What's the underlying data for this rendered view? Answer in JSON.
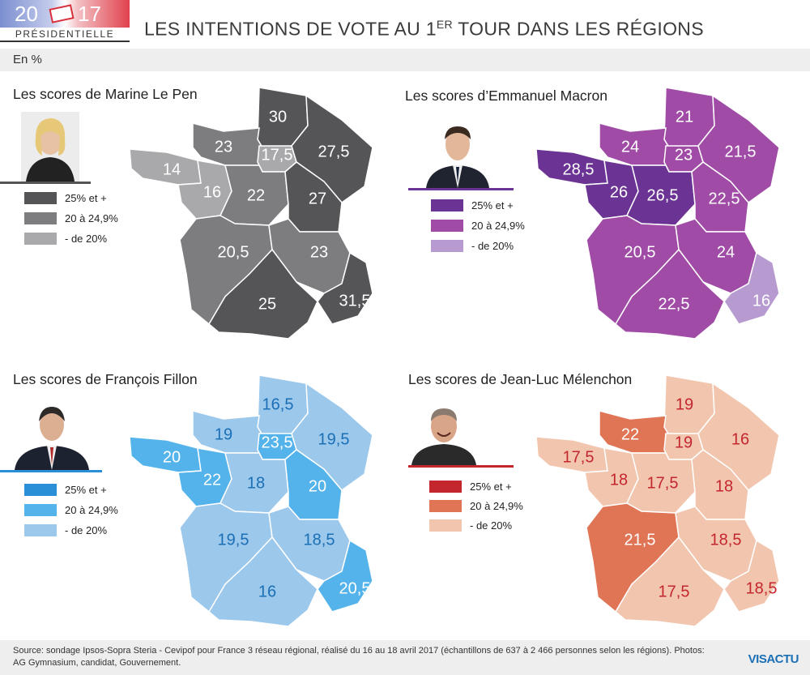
{
  "header": {
    "logo_year_left": "20",
    "logo_year_right": "17",
    "logo_subtitle": "PRÉSIDENTIELLE",
    "title_before": "LES INTENTIONS DE VOTE AU 1",
    "title_sup": "ER",
    "title_after": " TOUR DANS LES RÉGIONS",
    "unit": "En %"
  },
  "panels": [
    {
      "title": "Les scores de Marine Le Pen",
      "accent": "#555558",
      "legend": [
        {
          "label": "25% et +",
          "color": "#555558"
        },
        {
          "label": "20 à 24,9%",
          "color": "#7d7d80"
        },
        {
          "label": "- de 20%",
          "color": "#a9a9ab"
        }
      ],
      "regions": [
        {
          "name": "Hauts-de-France",
          "value": "30",
          "color": "#555558"
        },
        {
          "name": "Normandie",
          "value": "23",
          "color": "#7d7d80"
        },
        {
          "name": "Île-de-France",
          "value": "17,5",
          "color": "#a9a9ab"
        },
        {
          "name": "Grand Est",
          "value": "27,5",
          "color": "#555558"
        },
        {
          "name": "Bretagne",
          "value": "14",
          "color": "#a9a9ab"
        },
        {
          "name": "Pays de la Loire",
          "value": "16",
          "color": "#a9a9ab"
        },
        {
          "name": "Centre-Val de Loire",
          "value": "22",
          "color": "#7d7d80"
        },
        {
          "name": "Bourgogne-Franche-Comté",
          "value": "27",
          "color": "#555558"
        },
        {
          "name": "Nouvelle-Aquitaine",
          "value": "20,5",
          "color": "#7d7d80"
        },
        {
          "name": "Auvergne-Rhône-Alpes",
          "value": "23",
          "color": "#7d7d80"
        },
        {
          "name": "Occitanie",
          "value": "25",
          "color": "#555558"
        },
        {
          "name": "Provence-Alpes-Côte d'Azur",
          "value": "31,5",
          "color": "#555558"
        }
      ]
    },
    {
      "title": "Les scores d’Emmanuel Macron",
      "accent": "#6b3394",
      "legend": [
        {
          "label": "25% et +",
          "color": "#6b3394"
        },
        {
          "label": "20 à 24,9%",
          "color": "#a04ca6"
        },
        {
          "label": "- de 20%",
          "color": "#b79bd0"
        }
      ],
      "regions": [
        {
          "name": "Hauts-de-France",
          "value": "21",
          "color": "#a04ca6"
        },
        {
          "name": "Normandie",
          "value": "24",
          "color": "#a04ca6"
        },
        {
          "name": "Île-de-France",
          "value": "23",
          "color": "#a04ca6"
        },
        {
          "name": "Grand Est",
          "value": "21,5",
          "color": "#a04ca6"
        },
        {
          "name": "Bretagne",
          "value": "28,5",
          "color": "#6b3394"
        },
        {
          "name": "Pays de la Loire",
          "value": "26",
          "color": "#6b3394"
        },
        {
          "name": "Centre-Val de Loire",
          "value": "26,5",
          "color": "#6b3394"
        },
        {
          "name": "Bourgogne-Franche-Comté",
          "value": "22,5",
          "color": "#a04ca6"
        },
        {
          "name": "Nouvelle-Aquitaine",
          "value": "20,5",
          "color": "#a04ca6"
        },
        {
          "name": "Auvergne-Rhône-Alpes",
          "value": "24",
          "color": "#a04ca6"
        },
        {
          "name": "Occitanie",
          "value": "22,5",
          "color": "#a04ca6"
        },
        {
          "name": "Provence-Alpes-Côte d'Azur",
          "value": "16",
          "color": "#b79bd0"
        }
      ]
    },
    {
      "title": "Les scores de François Fillon",
      "accent": "#2a8fd6",
      "legend": [
        {
          "label": "25% et +",
          "color": "#2a8fd6"
        },
        {
          "label": "20 à 24,9%",
          "color": "#53b3ea"
        },
        {
          "label": "- de 20%",
          "color": "#9cc8ec"
        }
      ],
      "regions": [
        {
          "name": "Hauts-de-France",
          "value": "16,5",
          "color": "#9cc8ec"
        },
        {
          "name": "Normandie",
          "value": "19",
          "color": "#9cc8ec"
        },
        {
          "name": "Île-de-France",
          "value": "23,5",
          "color": "#53b3ea"
        },
        {
          "name": "Grand Est",
          "value": "19,5",
          "color": "#9cc8ec"
        },
        {
          "name": "Bretagne",
          "value": "20",
          "color": "#53b3ea"
        },
        {
          "name": "Pays de la Loire",
          "value": "22",
          "color": "#53b3ea"
        },
        {
          "name": "Centre-Val de Loire",
          "value": "18",
          "color": "#9cc8ec"
        },
        {
          "name": "Bourgogne-Franche-Comté",
          "value": "20",
          "color": "#53b3ea"
        },
        {
          "name": "Nouvelle-Aquitaine",
          "value": "19,5",
          "color": "#9cc8ec"
        },
        {
          "name": "Auvergne-Rhône-Alpes",
          "value": "18,5",
          "color": "#9cc8ec"
        },
        {
          "name": "Occitanie",
          "value": "16",
          "color": "#9cc8ec"
        },
        {
          "name": "Provence-Alpes-Côte d'Azur",
          "value": "20,5",
          "color": "#53b3ea"
        }
      ]
    },
    {
      "title": "Les scores de Jean-Luc Mélenchon",
      "accent": "#c4262e",
      "legend": [
        {
          "label": "25% et +",
          "color": "#c4262e"
        },
        {
          "label": "20 à 24,9%",
          "color": "#e07556"
        },
        {
          "label": "- de 20%",
          "color": "#f2c6ae"
        }
      ],
      "regions": [
        {
          "name": "Hauts-de-France",
          "value": "19",
          "color": "#f2c6ae"
        },
        {
          "name": "Normandie",
          "value": "22",
          "color": "#e07556"
        },
        {
          "name": "Île-de-France",
          "value": "19",
          "color": "#f2c6ae"
        },
        {
          "name": "Grand Est",
          "value": "16",
          "color": "#f2c6ae"
        },
        {
          "name": "Bretagne",
          "value": "17,5",
          "color": "#f2c6ae"
        },
        {
          "name": "Pays de la Loire",
          "value": "18",
          "color": "#f2c6ae"
        },
        {
          "name": "Centre-Val de Loire",
          "value": "17,5",
          "color": "#f2c6ae"
        },
        {
          "name": "Bourgogne-Franche-Comté",
          "value": "18",
          "color": "#f2c6ae"
        },
        {
          "name": "Nouvelle-Aquitaine",
          "value": "21,5",
          "color": "#e07556"
        },
        {
          "name": "Auvergne-Rhône-Alpes",
          "value": "18,5",
          "color": "#f2c6ae"
        },
        {
          "name": "Occitanie",
          "value": "17,5",
          "color": "#f2c6ae"
        },
        {
          "name": "Provence-Alpes-Côte d'Azur",
          "value": "18,5",
          "color": "#f2c6ae"
        }
      ]
    }
  ],
  "footer": {
    "source": "Source: sondage Ipsos-Sopra Steria - Cevipof pour France 3 réseau régional, réalisé du 16 au 18 avril 2017 (échantillons de 637 à 2 466 personnes selon les régions). Photos: AG Gymnasium, candidat, Gouvernement.",
    "brand": "VISACTU"
  }
}
